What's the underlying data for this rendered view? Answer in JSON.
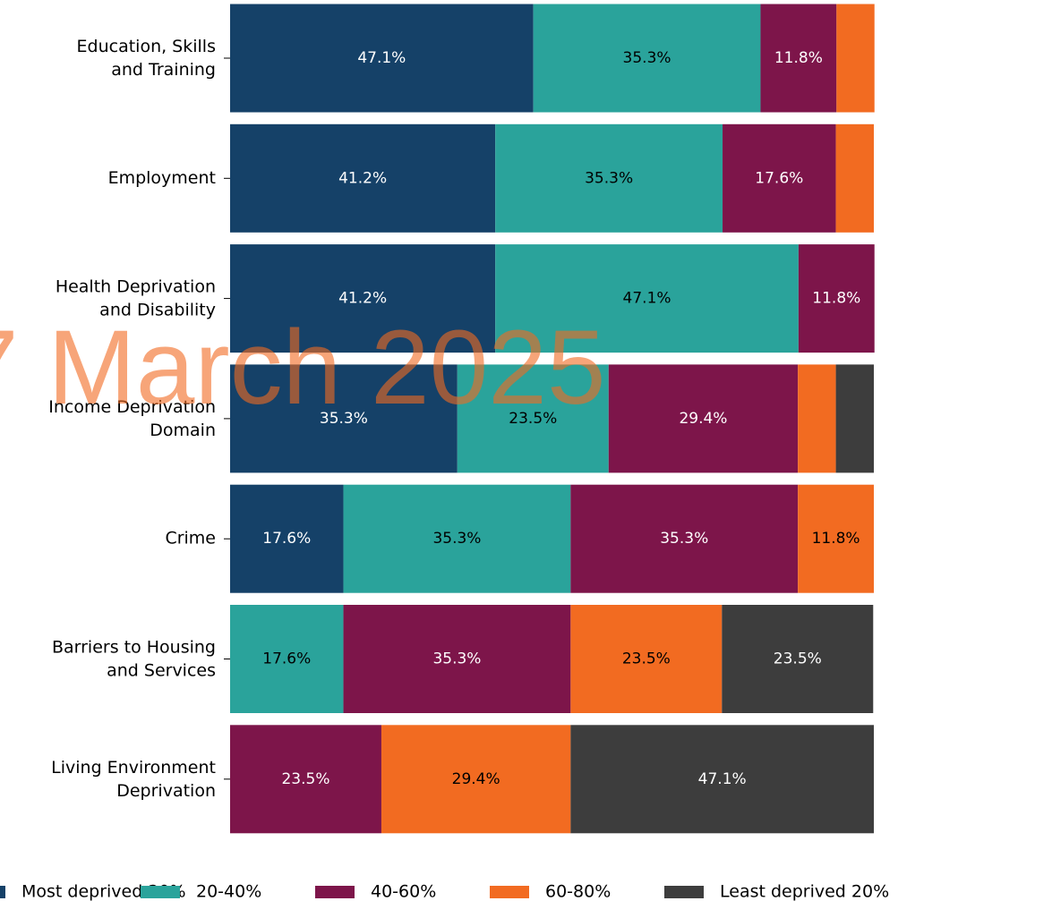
{
  "chart_data": {
    "type": "stacked-barh",
    "categories": [
      "Education, Skills\nand Training",
      "Employment",
      "Health Deprivation\nand Disability",
      "Income Deprivation\nDomain",
      "Crime",
      "Barriers to Housing\nand Services",
      "Living Environment\nDeprivation"
    ],
    "series": [
      {
        "name": "Most deprived 20%",
        "color": "#154168",
        "values": [
          47.1,
          41.2,
          41.2,
          35.3,
          17.6,
          0,
          0
        ],
        "value_labels": [
          "47.1%",
          "41.2%",
          "41.2%",
          "35.3%",
          "17.6%",
          null,
          null
        ]
      },
      {
        "name": "20-40%",
        "color": "#2aa39b",
        "values": [
          35.3,
          35.3,
          47.1,
          23.5,
          35.3,
          17.6,
          0
        ],
        "value_labels": [
          "35.3%",
          "35.3%",
          "47.1%",
          "23.5%",
          "35.3%",
          "17.6%",
          null
        ]
      },
      {
        "name": "40-60%",
        "color": "#7d154a",
        "values": [
          11.8,
          17.6,
          11.8,
          29.4,
          35.3,
          35.3,
          23.5
        ],
        "value_labels": [
          "11.8%",
          "17.6%",
          "11.8%",
          "29.4%",
          "35.3%",
          "35.3%",
          "23.5%"
        ]
      },
      {
        "name": "60-80%",
        "color": "#f26b21",
        "values": [
          5.9,
          5.9,
          0,
          5.9,
          11.8,
          23.5,
          29.4
        ],
        "value_labels": [
          null,
          null,
          null,
          null,
          "11.8%",
          "23.5%",
          "29.4%"
        ]
      },
      {
        "name": "Least deprived 20%",
        "color": "#3d3d3d",
        "values": [
          0,
          0,
          0,
          5.9,
          0,
          23.5,
          47.1
        ],
        "value_labels": [
          null,
          null,
          null,
          null,
          null,
          "23.5%",
          "47.1%"
        ]
      }
    ],
    "xlim": [
      0,
      100
    ],
    "label_colors": [
      "#ffffff",
      "#000000",
      "#ffffff",
      "#000000",
      "#ffffff"
    ],
    "watermark": "7 March 2025"
  }
}
